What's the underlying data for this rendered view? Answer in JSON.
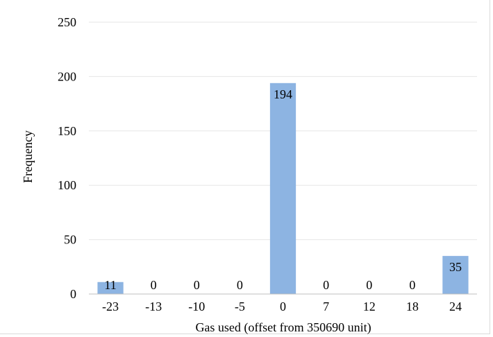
{
  "chart_data": {
    "type": "bar",
    "title": "",
    "xlabel": "Gas used (offset from 350690 unit)",
    "ylabel": "Frequency",
    "categories": [
      "-23",
      "-13",
      "-10",
      "-5",
      "0",
      "7",
      "12",
      "18",
      "24"
    ],
    "values": [
      11,
      0,
      0,
      0,
      194,
      0,
      0,
      0,
      35
    ],
    "data_labels": [
      "11",
      "0",
      "0",
      "0",
      "194",
      "0",
      "0",
      "0",
      "35"
    ],
    "ylim": [
      0,
      250
    ],
    "yticks": [
      "0",
      "50",
      "100",
      "150",
      "200",
      "250"
    ],
    "grid": true,
    "legend": "none",
    "colors": {
      "bar": "#8db4e2",
      "grid": "#e6e6e6",
      "axis": "#bfbfbf"
    }
  }
}
